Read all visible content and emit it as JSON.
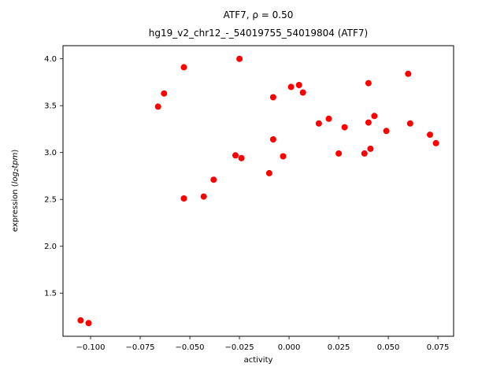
{
  "figure": {
    "title_line1": "ATF7, ρ = 0.50",
    "title_line2": "hg19_v2_chr12_-_54019755_54019804 (ATF7)"
  },
  "chart_data": {
    "type": "scatter",
    "title": "ATF7, ρ = 0.50",
    "subtitle": "hg19_v2_chr12_-_54019755_54019804 (ATF7)",
    "xlabel": "activity",
    "ylabel": "expression (log2tpm)",
    "ylabel_parts": {
      "prefix": "expression (",
      "math_word": "log",
      "math_sub": "2",
      "math_word2": "tpm",
      "suffix": ")"
    },
    "marker_color": "#ff0000",
    "axis_color": "#000000",
    "grid": false,
    "legend": "none",
    "xlim": [
      -0.1139,
      0.0829
    ],
    "ylim": [
      1.04,
      4.14
    ],
    "xticks": [
      {
        "v": -0.1,
        "label": "−0.100"
      },
      {
        "v": -0.075,
        "label": "−0.075"
      },
      {
        "v": -0.05,
        "label": "−0.050"
      },
      {
        "v": -0.025,
        "label": "−0.025"
      },
      {
        "v": 0.0,
        "label": "0.000"
      },
      {
        "v": 0.025,
        "label": "0.025"
      },
      {
        "v": 0.05,
        "label": "0.050"
      },
      {
        "v": 0.075,
        "label": "0.075"
      }
    ],
    "yticks": [
      {
        "v": 1.5,
        "label": "1.5"
      },
      {
        "v": 2.0,
        "label": "2.0"
      },
      {
        "v": 2.5,
        "label": "2.5"
      },
      {
        "v": 3.0,
        "label": "3.0"
      },
      {
        "v": 3.5,
        "label": "3.5"
      },
      {
        "v": 4.0,
        "label": "4.0"
      }
    ],
    "points": [
      [
        -0.105,
        1.21
      ],
      [
        -0.101,
        1.18
      ],
      [
        -0.066,
        3.49
      ],
      [
        -0.063,
        3.63
      ],
      [
        -0.053,
        3.91
      ],
      [
        -0.053,
        2.51
      ],
      [
        -0.043,
        2.53
      ],
      [
        -0.038,
        2.71
      ],
      [
        -0.025,
        4.0
      ],
      [
        -0.027,
        2.97
      ],
      [
        -0.024,
        2.94
      ],
      [
        -0.01,
        2.78
      ],
      [
        -0.008,
        3.59
      ],
      [
        -0.008,
        3.14
      ],
      [
        -0.003,
        2.96
      ],
      [
        0.001,
        3.7
      ],
      [
        0.005,
        3.72
      ],
      [
        0.007,
        3.64
      ],
      [
        0.015,
        3.31
      ],
      [
        0.02,
        3.36
      ],
      [
        0.025,
        2.99
      ],
      [
        0.028,
        3.27
      ],
      [
        0.04,
        3.74
      ],
      [
        0.04,
        3.32
      ],
      [
        0.038,
        2.99
      ],
      [
        0.041,
        3.04
      ],
      [
        0.043,
        3.39
      ],
      [
        0.049,
        3.23
      ],
      [
        0.06,
        3.84
      ],
      [
        0.061,
        3.31
      ],
      [
        0.071,
        3.19
      ],
      [
        0.074,
        3.1
      ]
    ]
  }
}
